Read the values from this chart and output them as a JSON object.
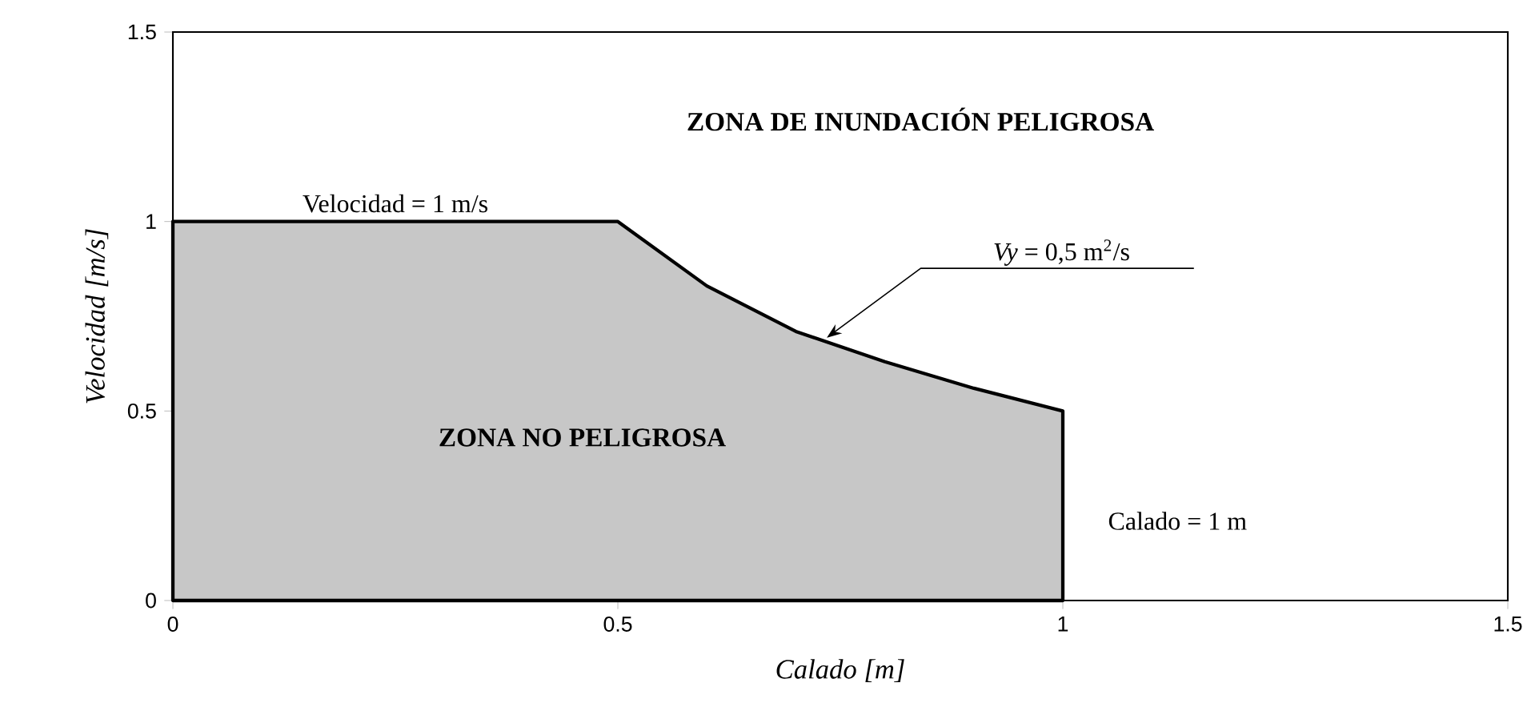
{
  "chart_data": {
    "type": "area",
    "xlabel": "Calado [m]",
    "ylabel": "Velocidad [m/s]",
    "x": [
      0,
      0.5,
      0.6,
      0.7,
      0.8,
      0.9,
      1,
      1
    ],
    "series": [
      {
        "color": "#000000",
        "values": [
          1,
          1,
          0.83,
          0.71,
          0.63,
          0.56,
          0.5,
          0
        ]
      }
    ],
    "xlim": [
      0,
      1.5
    ],
    "ylim": [
      0,
      1.5
    ],
    "xticks": [
      0,
      0.5,
      1,
      1.5
    ],
    "yticks": [
      0,
      0.5,
      1,
      1.5
    ],
    "grid": false,
    "annotations": [
      "**ZONA DE INUNDACIÓN PELIGROSA**",
      "Velocidad = 1 m/s",
      "*Vy* = 0,5 m$^{2}$/s",
      "**ZONA NO PELIGROSA**",
      "Calado = 1 m"
    ]
  }
}
